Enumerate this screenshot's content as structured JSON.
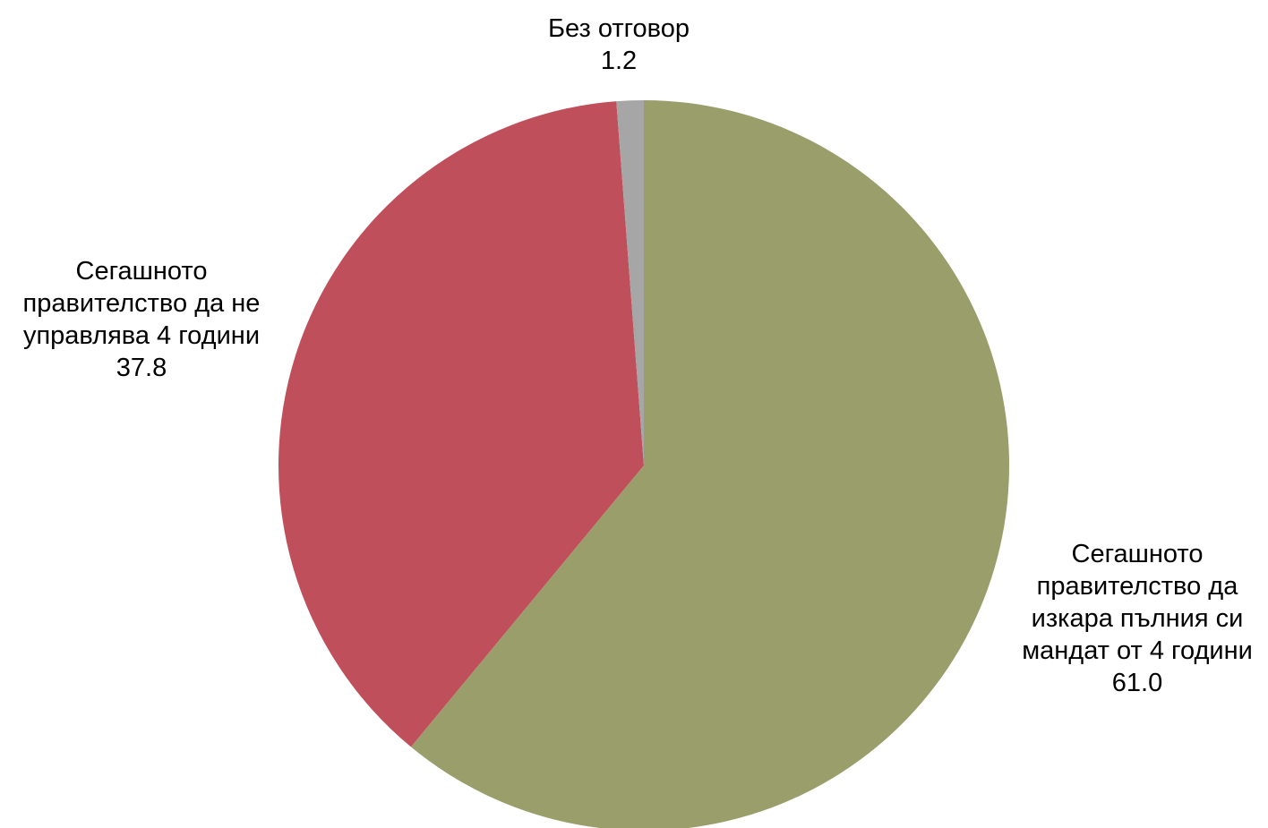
{
  "chart_data": {
    "type": "pie",
    "title": "",
    "start": "top",
    "direction": "clockwise",
    "slices": [
      {
        "label_lines": [
          "Сегашното",
          "правителство да",
          "изкара пълния си",
          "мандат от 4 години"
        ],
        "value": 61.0,
        "value_label": "61.0",
        "color": "#9a9e6a"
      },
      {
        "label_lines": [
          "Сегашното",
          "правителство да не",
          "управлява 4 години"
        ],
        "value": 37.8,
        "value_label": "37.8",
        "color": "#c04f5c"
      },
      {
        "label_lines": [
          "Без отговор"
        ],
        "value": 1.2,
        "value_label": "1.2",
        "color": "#a6a6a6"
      }
    ]
  }
}
